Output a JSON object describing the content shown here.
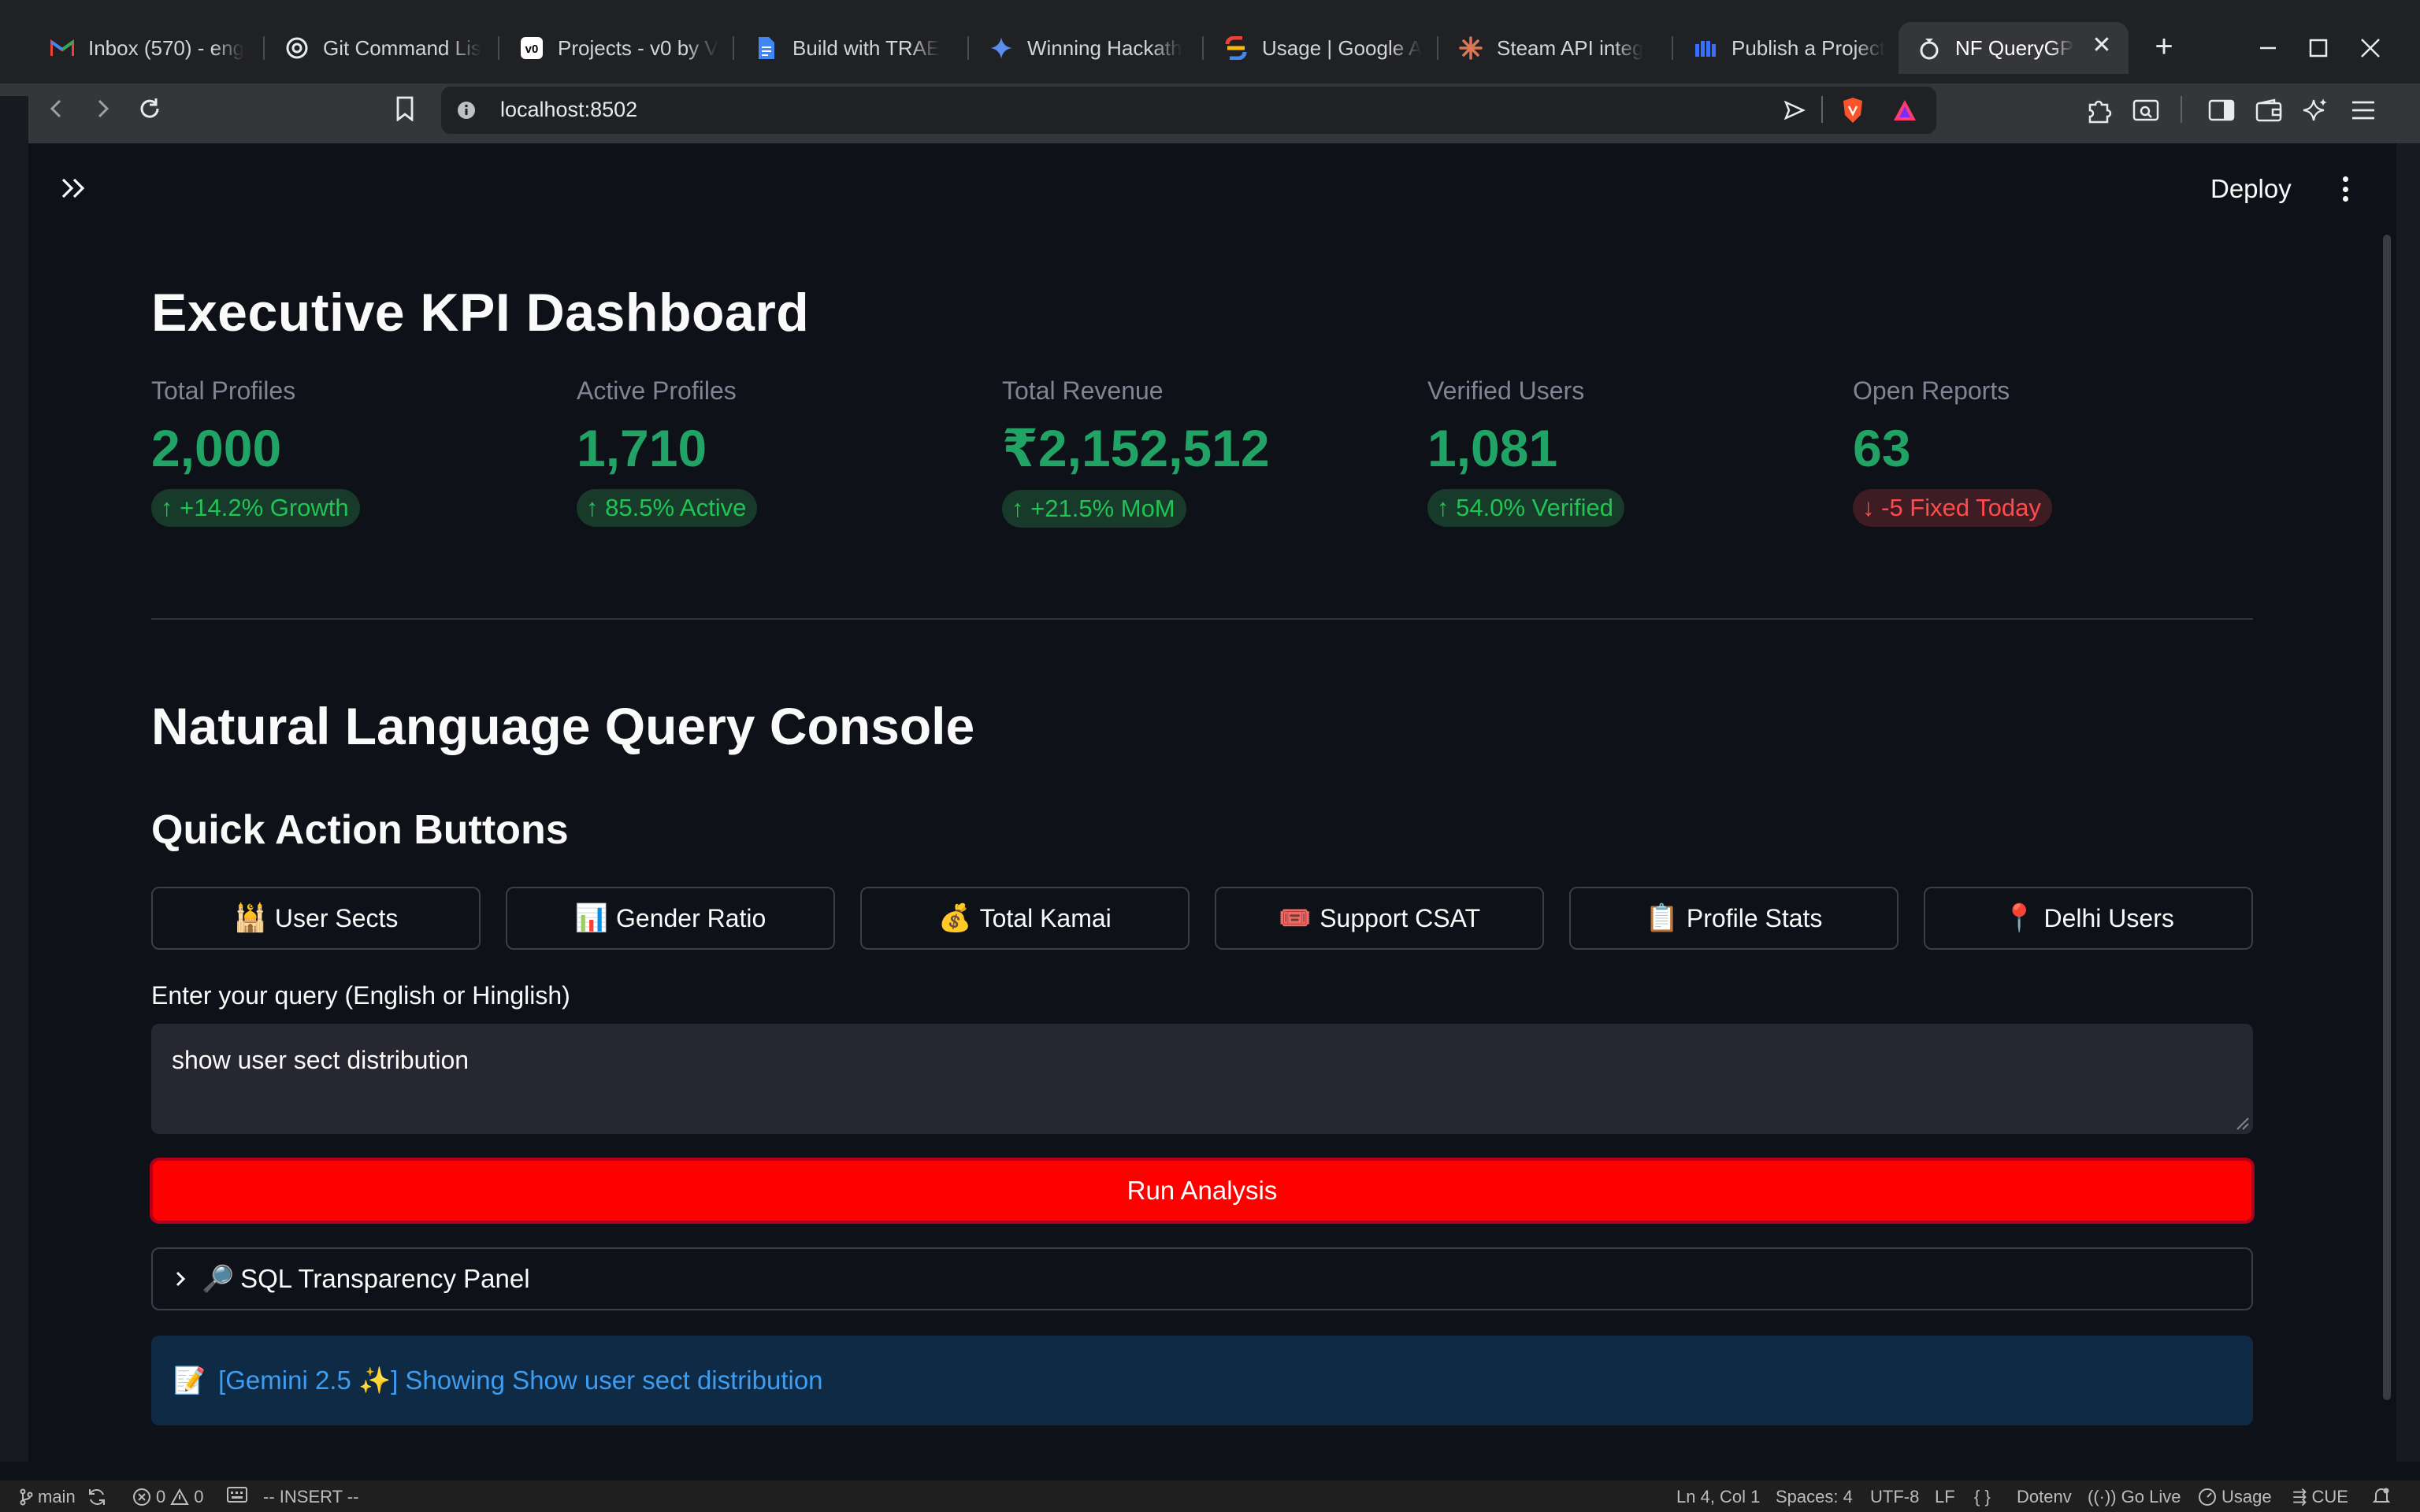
{
  "browser": {
    "tabs": [
      {
        "label": "Inbox (570) - eng",
        "icon": "gmail-icon"
      },
      {
        "label": "Git Command Lis",
        "icon": "chatgpt-icon"
      },
      {
        "label": "Projects - v0 by V",
        "icon": "v0-icon"
      },
      {
        "label": "Build with TRAE",
        "icon": "google-docs-icon"
      },
      {
        "label": "Winning Hackath",
        "icon": "gemini-icon"
      },
      {
        "label": "Usage | Google A",
        "icon": "google-ai-studio-icon"
      },
      {
        "label": "Steam API integ",
        "icon": "claude-icon"
      },
      {
        "label": "Publish a Project",
        "icon": "devfolio-icon"
      },
      {
        "label": "NF QueryGP",
        "icon": "ring-icon",
        "active": true
      }
    ],
    "url": "localhost:8502"
  },
  "app": {
    "deploy_label": "Deploy",
    "dashboard_title": "Executive KPI Dashboard",
    "kpis": [
      {
        "label": "Total Profiles",
        "value": "2,000",
        "delta": "+14.2% Growth",
        "direction": "up"
      },
      {
        "label": "Active Profiles",
        "value": "1,710",
        "delta": "85.5% Active",
        "direction": "up"
      },
      {
        "label": "Total Revenue",
        "value": "₹2,152,512",
        "delta": "+21.5% MoM",
        "direction": "up"
      },
      {
        "label": "Verified Users",
        "value": "1,081",
        "delta": "54.0% Verified",
        "direction": "up"
      },
      {
        "label": "Open Reports",
        "value": "63",
        "delta": "-5 Fixed Today",
        "direction": "down"
      }
    ],
    "console_title": "Natural Language Query Console",
    "quick_actions_title": "Quick Action Buttons",
    "quick_actions": [
      {
        "emoji": "🕌",
        "label": "User Sects"
      },
      {
        "emoji": "📊",
        "label": "Gender Ratio"
      },
      {
        "emoji": "💰",
        "label": "Total Kamai"
      },
      {
        "emoji": "🎟️",
        "label": "Support CSAT"
      },
      {
        "emoji": "📋",
        "label": "Profile Stats"
      },
      {
        "emoji": "📍",
        "label": "Delhi Users"
      }
    ],
    "query_label": "Enter your query (English or Hinglish)",
    "query_value": "show user sect distribution",
    "run_button": "Run Analysis",
    "sql_panel": {
      "emoji": "🔎",
      "label": "SQL Transparency Panel"
    },
    "info": {
      "emoji": "📝",
      "text": "[Gemini 2.5 ✨] Showing Show user sect distribution"
    },
    "colors": {
      "accent_green": "#21a366",
      "run_red": "#ff0000",
      "info_blue": "#3d9df3"
    }
  },
  "statusbar": {
    "branch": "main",
    "errors": "0",
    "warnings": "0",
    "mode": "-- INSERT --",
    "position": "Ln 4, Col 1",
    "spaces": "Spaces: 4",
    "encoding": "UTF-8",
    "eol": "LF",
    "braces": "{ }",
    "language": "Dotenv",
    "golive": "Go Live",
    "usage": "Usage",
    "cue": "CUE"
  }
}
